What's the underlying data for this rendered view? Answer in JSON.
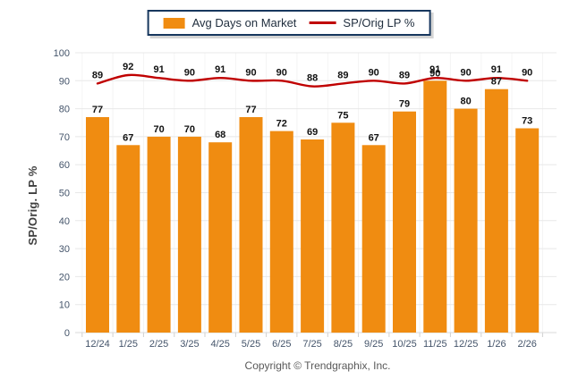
{
  "legend": {
    "bar_label": "Avg Days on Market",
    "line_label": "SP/Orig LP %"
  },
  "y_axis_title": "SP/Orig. LP %",
  "footer_text": "Copyright © Trendgraphix, Inc.",
  "colors": {
    "bar": "#F08C11",
    "line": "#C00000",
    "grid": "#E8E8E8",
    "grid_vertical": "#F4F4F4",
    "baseline": "#D9D9D9",
    "tick": "#CFCFCF",
    "tick_text": "#44546A",
    "data_label_text": "#111111",
    "legend_border": "#17375E",
    "axis_title_text": "#3F3F3F",
    "footer_text_color": "#595959"
  },
  "chart_data": {
    "type": "bar",
    "categories": [
      "12/24",
      "1/25",
      "2/25",
      "3/25",
      "4/25",
      "5/25",
      "6/25",
      "7/25",
      "8/25",
      "9/25",
      "10/25",
      "11/25",
      "12/25",
      "1/26",
      "2/26"
    ],
    "series": [
      {
        "name": "Avg Days on Market",
        "type": "bar",
        "color": "#F08C11",
        "values": [
          77,
          67,
          70,
          70,
          68,
          77,
          72,
          69,
          75,
          67,
          79,
          90,
          80,
          87,
          73
        ]
      },
      {
        "name": "SP/Orig LP %",
        "type": "line",
        "color": "#C00000",
        "values": [
          89,
          92,
          91,
          90,
          91,
          90,
          90,
          88,
          89,
          90,
          89,
          91,
          90,
          91,
          90
        ]
      }
    ],
    "title": "",
    "xlabel": "",
    "ylabel": "SP/Orig. LP %",
    "ylim": [
      0,
      100
    ],
    "yticks": [
      0,
      10,
      20,
      30,
      40,
      50,
      60,
      70,
      80,
      90,
      100
    ],
    "grid": true,
    "legend_position": "top-center",
    "data_labels": true
  }
}
